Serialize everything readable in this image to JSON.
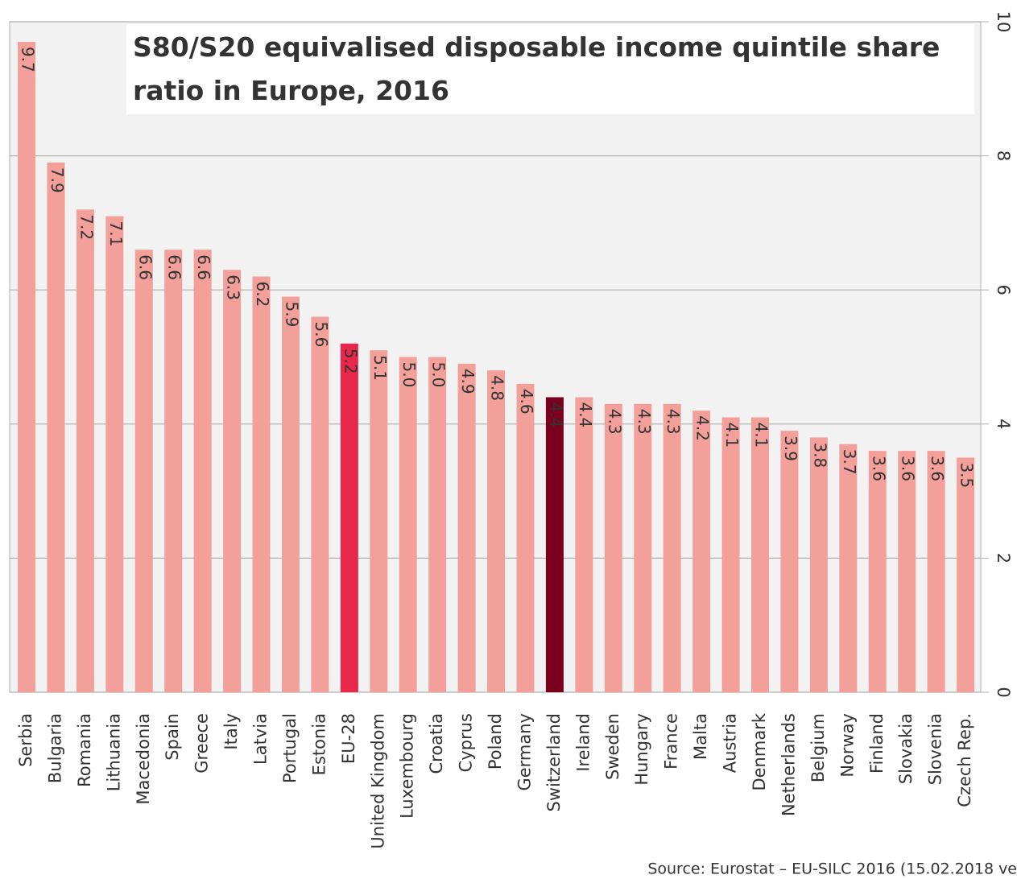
{
  "chart_data": {
    "type": "bar",
    "title": "S80/S20 equivalised disposable income quintile share ratio in Europe, 2016",
    "source": "Source: Eurostat – EU-SILC 2016 (15.02.2018 ve",
    "categories": [
      "Serbia",
      "Bulgaria",
      "Romania",
      "Lithuania",
      "Macedonia",
      "Spain",
      "Greece",
      "Italy",
      "Latvia",
      "Portugal",
      "Estonia",
      "EU-28",
      "United Kingdom",
      "Luxembourg",
      "Croatia",
      "Cyprus",
      "Poland",
      "Germany",
      "Switzerland",
      "Ireland",
      "Sweden",
      "Hungary",
      "France",
      "Malta",
      "Austria",
      "Denmark",
      "Netherlands",
      "Belgium",
      "Norway",
      "Finland",
      "Slovakia",
      "Slovenia",
      "Czech Rep."
    ],
    "values": [
      9.7,
      7.9,
      7.2,
      7.1,
      6.6,
      6.6,
      6.6,
      6.3,
      6.2,
      5.9,
      5.6,
      5.2,
      5.1,
      5.0,
      5.0,
      4.9,
      4.8,
      4.6,
      4.4,
      4.4,
      4.3,
      4.3,
      4.3,
      4.2,
      4.1,
      4.1,
      3.9,
      3.8,
      3.7,
      3.6,
      3.6,
      3.6,
      3.5
    ],
    "value_labels": [
      "9.7",
      "7.9",
      "7.2",
      "7.1",
      "6.6",
      "6.6",
      "6.6",
      "6.3",
      "6.2",
      "5.9",
      "5.6",
      "5.2",
      "5.1",
      "5.0",
      "5.0",
      "4.9",
      "4.8",
      "4.6",
      "4.4",
      "4.4",
      "4.3",
      "4.3",
      "4.3",
      "4.2",
      "4.1",
      "4.1",
      "3.9",
      "3.8",
      "3.7",
      "3.6",
      "3.6",
      "3.6",
      "3.5"
    ],
    "color": "#f4a09a",
    "highlight_colors": {
      "EU-28": "#e8274b",
      "Switzerland": "#7a0020"
    },
    "ylim": [
      0,
      10
    ],
    "yticks": [
      0,
      2,
      4,
      6,
      8,
      10
    ],
    "grid": true
  }
}
